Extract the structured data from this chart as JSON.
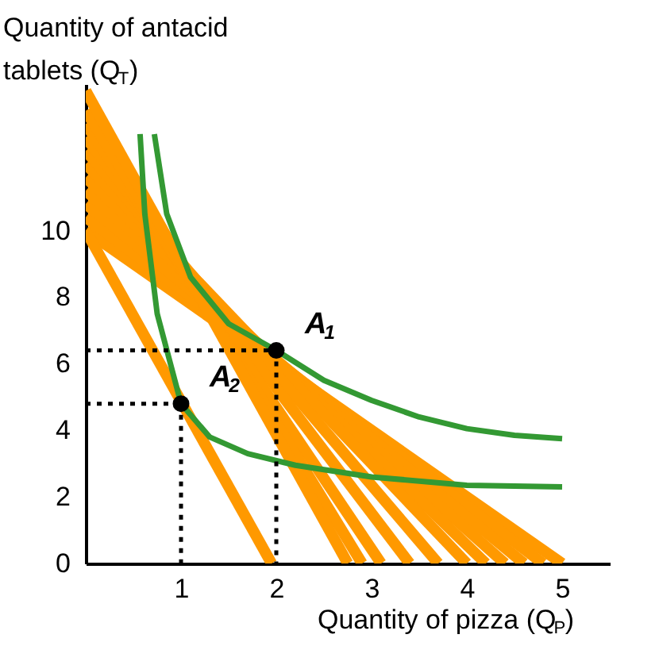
{
  "chart_data": {
    "type": "line",
    "xlabel": "Quantity of pizza (Q$_{P}$)",
    "ylabel": "Quantity of antacid\ntablets (Q$_{T}$)",
    "xlim": [
      0,
      5.5
    ],
    "ylim": [
      0,
      14.4
    ],
    "xticks": [
      1,
      2,
      3,
      4,
      5
    ],
    "yticks": [
      0,
      2,
      4,
      6,
      8,
      10
    ],
    "grid": false,
    "legend": false,
    "series": [
      {
        "type": "line",
        "color": "#ff9900",
        "x": [
          0,
          5.0
        ],
        "values": [
          10.0,
          0
        ]
      },
      {
        "type": "line",
        "color": "#ff9900",
        "x": [
          0,
          4.8
        ],
        "values": [
          10.4,
          0
        ]
      },
      {
        "type": "line",
        "color": "#ff9900",
        "x": [
          0,
          4.6
        ],
        "values": [
          10.8,
          0
        ]
      },
      {
        "type": "line",
        "color": "#ff9900",
        "x": [
          0,
          4.4
        ],
        "values": [
          11.2,
          0
        ]
      },
      {
        "type": "line",
        "color": "#ff9900",
        "x": [
          0,
          4.2
        ],
        "values": [
          11.6,
          0
        ]
      },
      {
        "type": "line",
        "color": "#ff9900",
        "x": [
          0,
          4.0
        ],
        "values": [
          12.0,
          0
        ]
      },
      {
        "type": "line",
        "color": "#ff9900",
        "x": [
          0,
          3.7
        ],
        "values": [
          12.4,
          0
        ]
      },
      {
        "type": "line",
        "color": "#ff9900",
        "x": [
          0,
          3.4
        ],
        "values": [
          12.8,
          0
        ]
      },
      {
        "type": "line",
        "color": "#ff9900",
        "x": [
          0,
          3.1
        ],
        "values": [
          13.2,
          0
        ]
      },
      {
        "type": "line",
        "color": "#ff9900",
        "x": [
          0,
          2.9
        ],
        "values": [
          13.6,
          0
        ]
      },
      {
        "type": "line",
        "color": "#ff9900",
        "x": [
          0,
          2.75
        ],
        "values": [
          14.2,
          0
        ]
      },
      {
        "type": "line",
        "color": "#ff9900",
        "x": [
          0,
          1.95
        ],
        "values": [
          10.0,
          0
        ]
      },
      {
        "type": "line",
        "color": "#339933",
        "x": [
          0.72,
          0.85,
          1.1,
          1.5,
          2,
          2.5,
          3,
          3.5,
          4,
          4.5,
          5
        ],
        "values": [
          12.9,
          10.5,
          8.6,
          7.2,
          6.4,
          5.5,
          4.9,
          4.4,
          4.05,
          3.85,
          3.75
        ]
      },
      {
        "type": "line",
        "color": "#339933",
        "x": [
          0.57,
          0.62,
          0.75,
          1,
          1.3,
          1.7,
          2.2,
          3,
          4,
          5
        ],
        "values": [
          12.9,
          10.5,
          7.5,
          4.8,
          3.8,
          3.3,
          2.95,
          2.6,
          2.35,
          2.3
        ]
      },
      {
        "type": "line",
        "line_style": "dotted",
        "color": "#000000",
        "x": [
          0,
          2
        ],
        "values": [
          6.4,
          6.4
        ]
      },
      {
        "type": "line",
        "line_style": "dotted",
        "color": "#000000",
        "x": [
          2,
          2
        ],
        "values": [
          6.4,
          0
        ]
      },
      {
        "type": "line",
        "line_style": "dotted",
        "color": "#000000",
        "x": [
          0,
          1
        ],
        "values": [
          4.8,
          4.8
        ]
      },
      {
        "type": "line",
        "line_style": "dotted",
        "color": "#000000",
        "x": [
          1,
          1
        ],
        "values": [
          4.8,
          0
        ]
      },
      {
        "type": "scatter",
        "marker": "circle",
        "name": "A$_{1}$",
        "color": "#000000",
        "x": [
          2
        ],
        "values": [
          6.4
        ]
      },
      {
        "type": "scatter",
        "marker": "circle",
        "name": "A$_{2}$",
        "color": "#000000",
        "x": [
          1
        ],
        "values": [
          4.8
        ]
      }
    ]
  }
}
